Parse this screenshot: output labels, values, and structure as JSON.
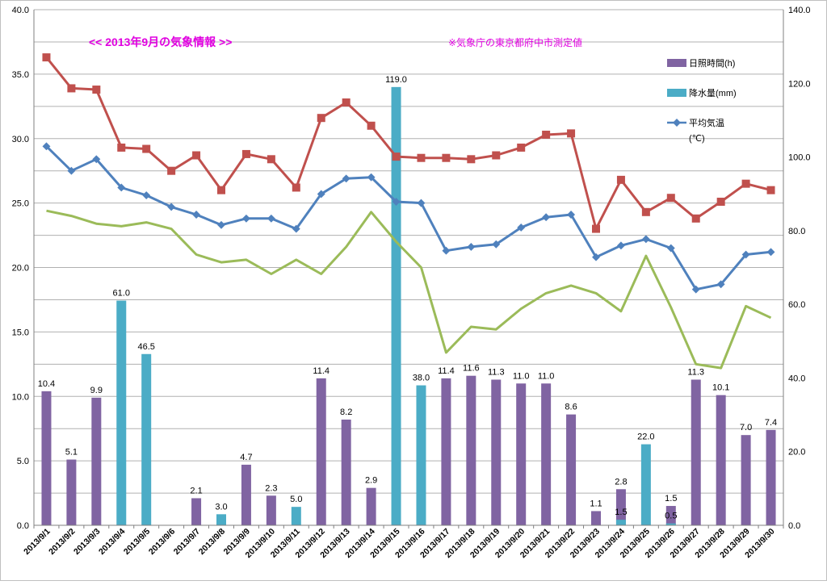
{
  "chart_data": {
    "type": "bar",
    "title": "<<  2013年9月の気象情報  >>",
    "subtitle": "※気象庁の東京都府中市測定値",
    "categories": [
      "2013/9/1",
      "2013/9/2",
      "2013/9/3",
      "2013/9/4",
      "2013/9/5",
      "2013/9/6",
      "2013/9/7",
      "2013/9/8",
      "2013/9/9",
      "2013/9/10",
      "2013/9/11",
      "2013/9/12",
      "2013/9/13",
      "2013/9/14",
      "2013/9/15",
      "2013/9/16",
      "2013/9/17",
      "2013/9/18",
      "2013/9/19",
      "2013/9/20",
      "2013/9/21",
      "2013/9/22",
      "2013/9/23",
      "2013/9/24",
      "2013/9/25",
      "2013/9/26",
      "2013/9/27",
      "2013/9/28",
      "2013/9/29",
      "2013/9/30"
    ],
    "left_axis": {
      "min": 0,
      "max": 40,
      "step": 5,
      "tick_labels": [
        "0.0",
        "5.0",
        "10.0",
        "15.0",
        "20.0",
        "25.0",
        "30.0",
        "35.0",
        "40.0"
      ]
    },
    "right_axis": {
      "min": 0,
      "max": 140,
      "step": 20,
      "tick_labels": [
        "0.0",
        "20.0",
        "40.0",
        "60.0",
        "80.0",
        "100.0",
        "120.0",
        "140.0"
      ]
    },
    "grid": true,
    "legend_position": "top-right",
    "legend": {
      "sunshine": "日照時間(h)",
      "rain": "降水量(mm)",
      "temp_line1": "平均気温",
      "temp_line2": "(℃)"
    },
    "series": [
      {
        "key": "sunshine",
        "name": "日照時間(h)",
        "kind": "bar",
        "axis": "left",
        "color": "#8064a2",
        "values": [
          10.4,
          5.1,
          9.9,
          null,
          null,
          null,
          2.1,
          null,
          4.7,
          2.3,
          null,
          11.4,
          8.2,
          2.9,
          null,
          null,
          11.4,
          11.6,
          11.3,
          11.0,
          11.0,
          8.6,
          1.1,
          2.8,
          null,
          1.5,
          11.3,
          10.1,
          7.0,
          7.4
        ],
        "labels": [
          "10.4",
          "5.1",
          "9.9",
          "",
          "",
          "",
          "2.1",
          "",
          "4.7",
          "2.3",
          "",
          "11.4",
          "8.2",
          "2.9",
          "",
          "",
          "11.4",
          "11.6",
          "11.3",
          "11.0",
          "11.0",
          "8.6",
          "1.1",
          "2.8",
          "",
          "1.5",
          "11.3",
          "10.1",
          "7.0",
          "7.4"
        ]
      },
      {
        "key": "rain",
        "name": "降水量(mm)",
        "kind": "bar",
        "axis": "right",
        "color": "#4bacc6",
        "values": [
          null,
          null,
          null,
          61.0,
          46.5,
          null,
          null,
          3.0,
          null,
          null,
          5.0,
          null,
          null,
          null,
          119.0,
          38.0,
          null,
          null,
          null,
          null,
          null,
          null,
          null,
          1.5,
          22.0,
          0.5,
          null,
          null,
          null,
          null
        ],
        "labels": [
          "",
          "",
          "",
          "61.0",
          "46.5",
          "",
          "",
          "3.0",
          "",
          "",
          "5.0",
          "",
          "",
          "",
          "119.0",
          "38.0",
          "",
          "",
          "",
          "",
          "",
          "",
          "",
          "1.5",
          "22.0",
          "0.5",
          "",
          "",
          "",
          ""
        ]
      },
      {
        "key": "temp_max",
        "kind": "line",
        "axis": "left",
        "marker": "square",
        "color": "#c0504d",
        "values": [
          36.3,
          33.9,
          33.8,
          29.3,
          29.2,
          27.5,
          28.7,
          26.0,
          28.8,
          28.4,
          26.2,
          31.6,
          32.8,
          31.0,
          28.6,
          28.5,
          28.5,
          28.4,
          28.7,
          29.3,
          30.3,
          30.4,
          23.0,
          26.8,
          24.3,
          25.4,
          23.8,
          25.1,
          26.5,
          26.0
        ]
      },
      {
        "key": "temp_avg",
        "name": "平均気温",
        "kind": "line",
        "axis": "left",
        "marker": "diamond",
        "color": "#4f81bd",
        "values": [
          29.4,
          27.5,
          28.4,
          26.2,
          25.6,
          24.7,
          24.1,
          23.3,
          23.8,
          23.8,
          23.0,
          25.7,
          26.9,
          27.0,
          25.1,
          25.0,
          21.3,
          21.6,
          21.8,
          23.1,
          23.9,
          24.1,
          20.8,
          21.7,
          22.2,
          21.5,
          18.3,
          18.7,
          21.0,
          21.2
        ]
      },
      {
        "key": "temp_min",
        "kind": "line",
        "axis": "left",
        "marker": "none",
        "color": "#9bbb59",
        "values": [
          24.4,
          24.0,
          23.4,
          23.2,
          23.5,
          23.0,
          21.0,
          20.4,
          20.6,
          19.5,
          20.6,
          19.5,
          21.6,
          24.3,
          22.0,
          20.0,
          13.4,
          15.4,
          15.2,
          16.8,
          18.0,
          18.6,
          18.0,
          16.6,
          20.9,
          16.9,
          12.5,
          12.2,
          17.0,
          16.1
        ]
      }
    ]
  }
}
